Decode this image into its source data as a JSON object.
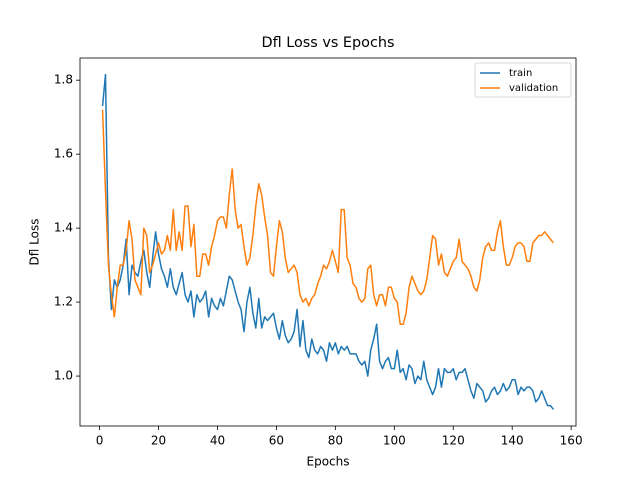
{
  "chart_data": {
    "type": "line",
    "title": "Dfl Loss vs Epochs",
    "xlabel": "Epochs",
    "ylabel": "Dfl Loss",
    "x": [
      1,
      2,
      3,
      4,
      5,
      6,
      7,
      8,
      9,
      10,
      11,
      12,
      13,
      14,
      15,
      16,
      17,
      18,
      19,
      20,
      21,
      22,
      23,
      24,
      25,
      26,
      27,
      28,
      29,
      30,
      31,
      32,
      33,
      34,
      35,
      36,
      37,
      38,
      39,
      40,
      41,
      42,
      43,
      44,
      45,
      46,
      47,
      48,
      49,
      50,
      51,
      52,
      53,
      54,
      55,
      56,
      57,
      58,
      59,
      60,
      61,
      62,
      63,
      64,
      65,
      66,
      67,
      68,
      69,
      70,
      71,
      72,
      73,
      74,
      75,
      76,
      77,
      78,
      79,
      80,
      81,
      82,
      83,
      84,
      85,
      86,
      87,
      88,
      89,
      90,
      91,
      92,
      93,
      94,
      95,
      96,
      97,
      98,
      99,
      100,
      101,
      102,
      103,
      104,
      105,
      106,
      107,
      108,
      109,
      110,
      111,
      112,
      113,
      114,
      115,
      116,
      117,
      118,
      119,
      120,
      121,
      122,
      123,
      124,
      125,
      126,
      127,
      128,
      129,
      130,
      131,
      132,
      133,
      134,
      135,
      136,
      137,
      138,
      139,
      140,
      141,
      142,
      143,
      144,
      145,
      146,
      147,
      148,
      149,
      150,
      151,
      152,
      153,
      154
    ],
    "series": [
      {
        "name": "train",
        "color": "#1f77b4",
        "values": [
          1.73,
          1.815,
          1.32,
          1.18,
          1.26,
          1.24,
          1.26,
          1.3,
          1.37,
          1.22,
          1.3,
          1.28,
          1.27,
          1.31,
          1.34,
          1.28,
          1.24,
          1.32,
          1.39,
          1.33,
          1.29,
          1.27,
          1.24,
          1.29,
          1.24,
          1.22,
          1.25,
          1.28,
          1.22,
          1.2,
          1.23,
          1.16,
          1.22,
          1.2,
          1.21,
          1.23,
          1.16,
          1.21,
          1.19,
          1.18,
          1.21,
          1.19,
          1.23,
          1.27,
          1.26,
          1.23,
          1.2,
          1.18,
          1.12,
          1.2,
          1.24,
          1.17,
          1.13,
          1.21,
          1.13,
          1.16,
          1.15,
          1.16,
          1.17,
          1.13,
          1.1,
          1.15,
          1.11,
          1.09,
          1.1,
          1.12,
          1.18,
          1.08,
          1.15,
          1.07,
          1.05,
          1.1,
          1.07,
          1.06,
          1.08,
          1.07,
          1.04,
          1.09,
          1.07,
          1.09,
          1.06,
          1.08,
          1.07,
          1.08,
          1.06,
          1.06,
          1.06,
          1.04,
          1.03,
          1.04,
          1.0,
          1.07,
          1.1,
          1.14,
          1.04,
          1.02,
          1.04,
          1.05,
          1.02,
          1.02,
          1.07,
          1.01,
          1.02,
          0.99,
          1.03,
          1.02,
          0.98,
          1.0,
          0.99,
          1.04,
          0.99,
          0.97,
          0.95,
          0.97,
          1.02,
          0.97,
          1.02,
          1.01,
          1.01,
          1.02,
          0.99,
          1.01,
          1.01,
          1.02,
          0.99,
          0.96,
          0.94,
          0.98,
          0.97,
          0.96,
          0.93,
          0.94,
          0.96,
          0.97,
          0.95,
          0.96,
          0.98,
          0.96,
          0.97,
          0.99,
          0.99,
          0.95,
          0.97,
          0.96,
          0.97,
          0.97,
          0.96,
          0.93,
          0.94,
          0.96,
          0.94,
          0.92,
          0.92,
          0.91
        ]
      },
      {
        "name": "validation",
        "color": "#ff7f0e",
        "values": [
          1.72,
          1.5,
          1.3,
          1.22,
          1.16,
          1.24,
          1.3,
          1.3,
          1.34,
          1.42,
          1.37,
          1.26,
          1.24,
          1.22,
          1.4,
          1.38,
          1.28,
          1.3,
          1.33,
          1.36,
          1.33,
          1.34,
          1.38,
          1.34,
          1.45,
          1.34,
          1.39,
          1.34,
          1.46,
          1.46,
          1.35,
          1.41,
          1.27,
          1.27,
          1.33,
          1.33,
          1.3,
          1.35,
          1.38,
          1.42,
          1.43,
          1.43,
          1.4,
          1.49,
          1.56,
          1.45,
          1.4,
          1.41,
          1.35,
          1.3,
          1.32,
          1.38,
          1.46,
          1.52,
          1.49,
          1.43,
          1.38,
          1.28,
          1.27,
          1.35,
          1.42,
          1.39,
          1.32,
          1.28,
          1.29,
          1.3,
          1.28,
          1.22,
          1.2,
          1.21,
          1.19,
          1.21,
          1.22,
          1.25,
          1.27,
          1.3,
          1.29,
          1.31,
          1.34,
          1.31,
          1.28,
          1.45,
          1.45,
          1.32,
          1.3,
          1.25,
          1.24,
          1.21,
          1.2,
          1.21,
          1.29,
          1.3,
          1.22,
          1.19,
          1.22,
          1.22,
          1.19,
          1.24,
          1.24,
          1.21,
          1.2,
          1.14,
          1.14,
          1.17,
          1.24,
          1.27,
          1.25,
          1.23,
          1.22,
          1.23,
          1.26,
          1.32,
          1.38,
          1.37,
          1.3,
          1.33,
          1.28,
          1.27,
          1.29,
          1.31,
          1.32,
          1.37,
          1.31,
          1.3,
          1.29,
          1.27,
          1.24,
          1.23,
          1.26,
          1.32,
          1.35,
          1.36,
          1.34,
          1.34,
          1.39,
          1.42,
          1.35,
          1.3,
          1.3,
          1.32,
          1.35,
          1.36,
          1.36,
          1.35,
          1.31,
          1.31,
          1.36,
          1.37,
          1.38,
          1.38,
          1.39,
          1.38,
          1.37,
          1.36
        ]
      }
    ],
    "xlim": [
      -6.65,
      161.65
    ],
    "xticks": [
      0,
      20,
      40,
      60,
      80,
      100,
      120,
      140,
      160
    ],
    "ylim": [
      0.865,
      1.86
    ],
    "yticks": [
      {
        "value": 1,
        "label": "1.0"
      },
      1.2,
      1.4,
      1.6,
      1.8
    ],
    "legend": "upper right"
  }
}
